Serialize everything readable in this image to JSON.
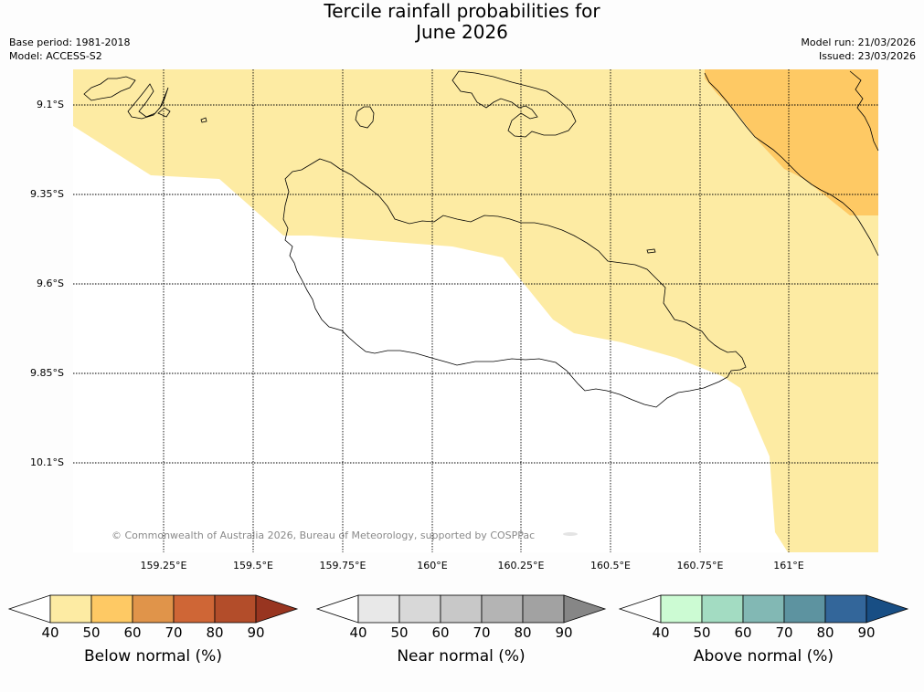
{
  "title": {
    "line1": "Tercile rainfall probabilities for",
    "line2": "June 2026"
  },
  "meta": {
    "base_period": "Base period: 1981-2018",
    "model": "Model: ACCESS-S2",
    "model_run": "Model run: 21/03/2026",
    "issued": "Issued: 23/03/2026"
  },
  "map": {
    "lat_labels": [
      "9.1°S",
      "9.35°S",
      "9.6°S",
      "9.85°S",
      "10.1°S"
    ],
    "lon_labels": [
      "159.25°E",
      "159.5°E",
      "159.75°E",
      "160°E",
      "160.25°E",
      "160.5°E",
      "160.75°E",
      "161°E"
    ],
    "copyright": "© Commonwealth of Australia 2026, Bureau of Meteorology, supported by COSPPac",
    "regions": [
      {
        "category": "below_normal",
        "probability_band": "40-50",
        "color": "#fdeba3"
      },
      {
        "category": "below_normal",
        "probability_band": "50-60",
        "color": "#fec964"
      }
    ]
  },
  "colorbars": [
    {
      "title": "Below normal (%)",
      "ticks": [
        "40",
        "50",
        "60",
        "70",
        "80",
        "90"
      ],
      "colors": [
        "#ffffff",
        "#fdeba3",
        "#fec964",
        "#e0944a",
        "#cf6636",
        "#b34d2a",
        "#983520"
      ]
    },
    {
      "title": "Near normal (%)",
      "ticks": [
        "40",
        "50",
        "60",
        "70",
        "80",
        "90"
      ],
      "colors": [
        "#ffffff",
        "#e8e8e8",
        "#d8d8d8",
        "#c8c8c8",
        "#b4b4b4",
        "#a2a2a2",
        "#868686"
      ]
    },
    {
      "title": "Above normal (%)",
      "ticks": [
        "40",
        "50",
        "60",
        "70",
        "80",
        "90"
      ],
      "colors": [
        "#ffffff",
        "#ccfbd3",
        "#a3dcc2",
        "#82b8b4",
        "#5d93a0",
        "#33669a",
        "#184e84"
      ]
    }
  ]
}
